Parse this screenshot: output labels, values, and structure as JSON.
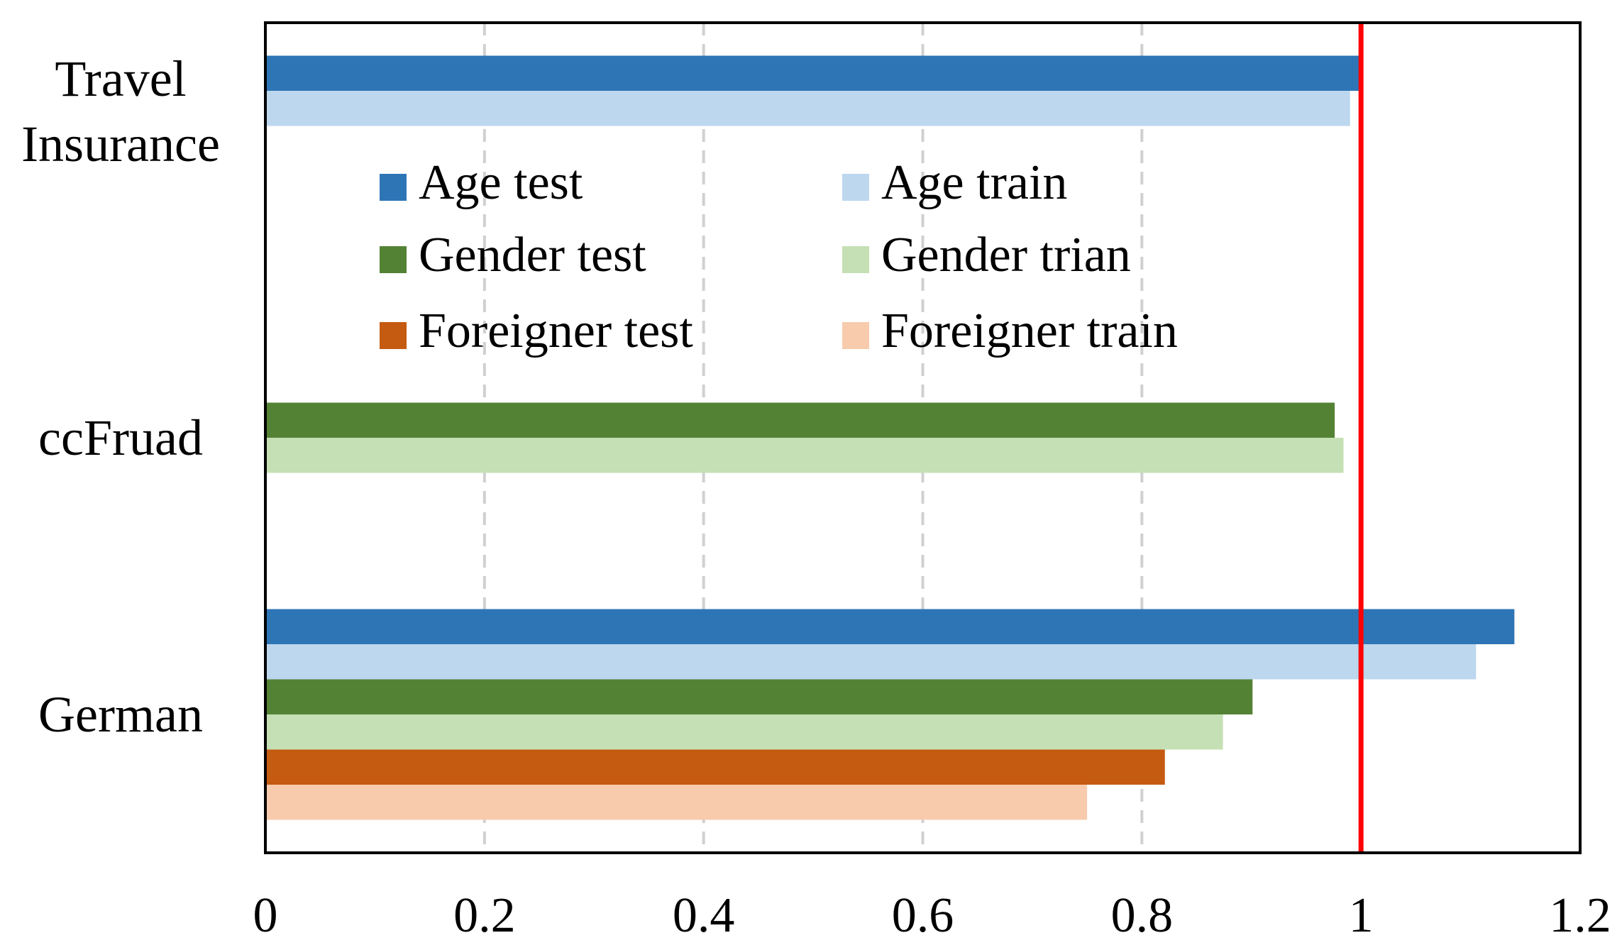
{
  "chart_data": {
    "type": "bar",
    "orientation": "horizontal",
    "categories": [
      "Travel Insurance",
      "ccFruad",
      "German"
    ],
    "series": [
      {
        "name": "Age test",
        "color": "#2e75b6",
        "values": [
          0.998,
          null,
          1.14
        ]
      },
      {
        "name": "Age train",
        "color": "#bdd7ee",
        "values": [
          0.99,
          null,
          1.105
        ]
      },
      {
        "name": "Gender test",
        "color": "#548235",
        "values": [
          null,
          0.976,
          0.901
        ]
      },
      {
        "name": "Gender trian",
        "color": "#c5e0b4",
        "values": [
          null,
          0.984,
          0.874
        ]
      },
      {
        "name": "Foreigner test",
        "color": "#c55a11",
        "values": [
          null,
          null,
          0.821
        ]
      },
      {
        "name": "Foreigner train",
        "color": "#f8cbad",
        "values": [
          null,
          null,
          0.75
        ]
      }
    ],
    "xlim": [
      0,
      1.2
    ],
    "xticks": [
      0,
      0.2,
      0.4,
      0.6,
      0.8,
      1,
      1.2
    ],
    "grid": true,
    "legend": "top",
    "reference_line": {
      "value": 1,
      "color": "#ff0000"
    }
  }
}
